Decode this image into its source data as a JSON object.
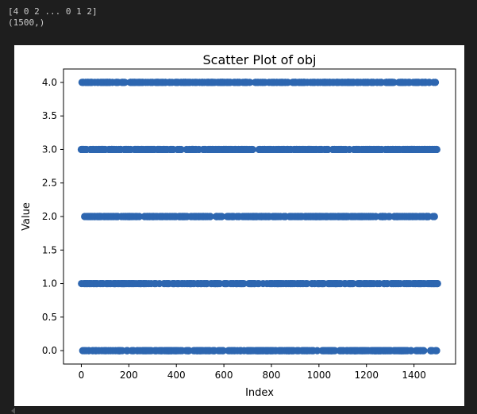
{
  "output": {
    "lines": [
      "[4 0 2 ... 0 1 2]",
      "(1500,)"
    ]
  },
  "chart_data": {
    "type": "scatter",
    "title": "Scatter Plot of obj",
    "xlabel": "Index",
    "ylabel": "Value",
    "xlim": [
      -75,
      1575
    ],
    "ylim": [
      -0.2,
      4.2
    ],
    "xticks": [
      0,
      200,
      400,
      600,
      800,
      1000,
      1200,
      1400
    ],
    "yticks": [
      0.0,
      0.5,
      1.0,
      1.5,
      2.0,
      2.5,
      3.0,
      3.5,
      4.0
    ],
    "xtick_labels": [
      "0",
      "200",
      "400",
      "600",
      "800",
      "1000",
      "1200",
      "1400"
    ],
    "ytick_labels": [
      "0.0",
      "0.5",
      "1.0",
      "1.5",
      "2.0",
      "2.5",
      "3.0",
      "3.5",
      "4.0"
    ],
    "n_points": 1500,
    "levels": [
      0,
      1,
      2,
      3,
      4
    ],
    "marker_color": "#2d66b0",
    "grid": false
  }
}
